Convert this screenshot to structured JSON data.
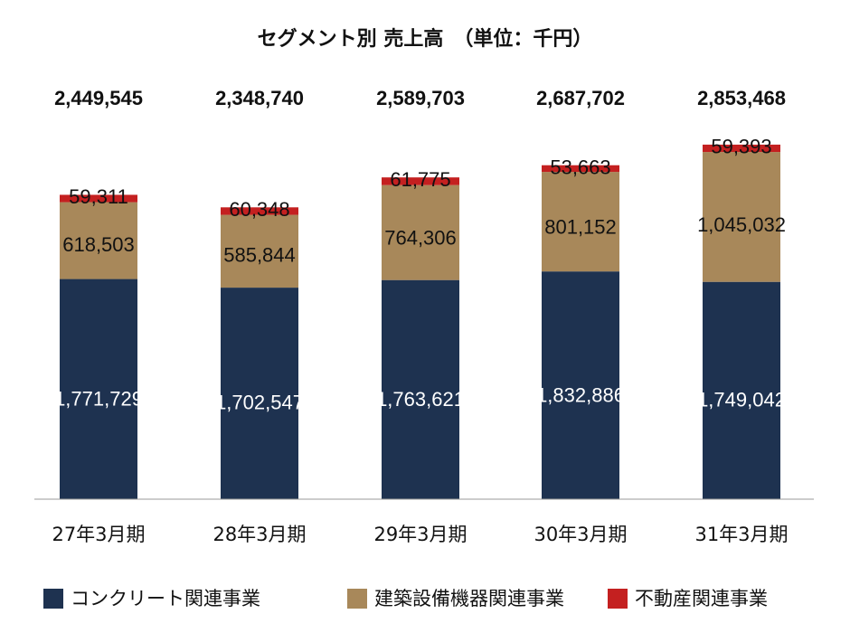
{
  "chart_data": {
    "type": "bar",
    "stacked": true,
    "title": "セグメント別 売上高　（単位：千円）",
    "categories": [
      "27年3月期",
      "28年3月期",
      "29年3月期",
      "30年3月期",
      "31年3月期"
    ],
    "totals": [
      "2,449,545",
      "2,348,740",
      "2,589,703",
      "2,687,702",
      "2,853,468"
    ],
    "series": [
      {
        "name": "コンクリート関連事業",
        "color": "#1e3250",
        "values": [
          1771729,
          1702547,
          1763621,
          1832886,
          1749042
        ],
        "labels": [
          "1,771,729",
          "1,702,547",
          "1,763,621",
          "1,832,886",
          "1,749,042"
        ]
      },
      {
        "name": "建築設備機器関連事業",
        "color": "#a8885a",
        "values": [
          618503,
          585844,
          764306,
          801152,
          1045032
        ],
        "labels": [
          "618,503",
          "585,844",
          "764,306",
          "801,152",
          "1,045,032"
        ]
      },
      {
        "name": "不動産関連事業",
        "color": "#c42020",
        "values": [
          59311,
          60348,
          61775,
          53663,
          59393
        ],
        "labels": [
          "59,311",
          "60,348",
          "61,775",
          "53,663",
          "59,393"
        ]
      }
    ],
    "legend_position": "bottom",
    "grid": false
  }
}
